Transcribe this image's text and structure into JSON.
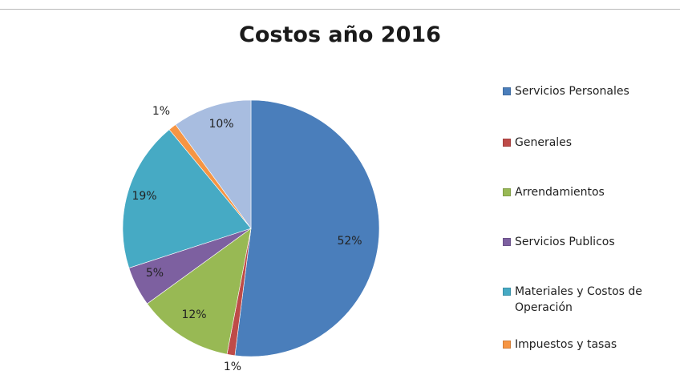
{
  "chart_data": {
    "type": "pie",
    "title": "Costos año 2016",
    "legend_position": "right",
    "slices": [
      {
        "name": "Servicios Personales",
        "value": 52,
        "label": "52%",
        "color": "#4a7ebb"
      },
      {
        "name": "Generales",
        "value": 1,
        "label": "1%",
        "color": "#be4b48"
      },
      {
        "name": "Arrendamientos",
        "value": 12,
        "label": "12%",
        "color": "#98b954"
      },
      {
        "name": "Servicios Publicos",
        "value": 5,
        "label": "5%",
        "color": "#7d60a0"
      },
      {
        "name": "Materiales y Costos de Operación",
        "value": 19,
        "label": "19%",
        "color": "#46aac4"
      },
      {
        "name": "Impuestos y tasas",
        "value": 1,
        "label": "1%",
        "color": "#f69543"
      },
      {
        "name": "",
        "value": 10,
        "label": "10%",
        "color": "#a8bde0"
      }
    ]
  }
}
